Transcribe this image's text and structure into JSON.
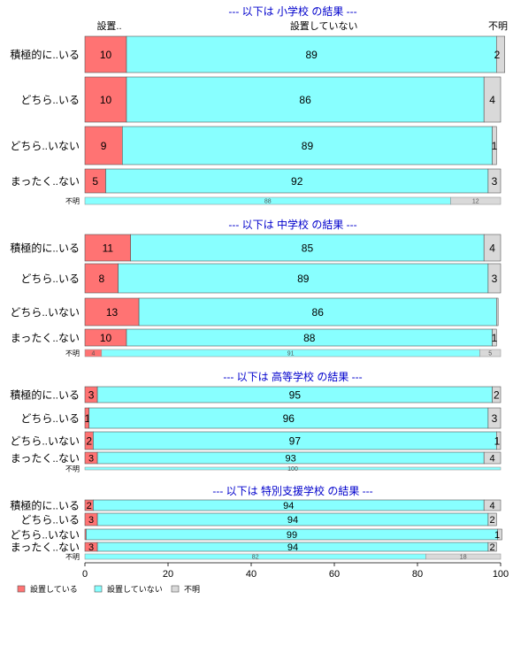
{
  "chart_data": {
    "type": "bar",
    "orientation": "horizontal",
    "stacked": true,
    "percent": true,
    "xlim": [
      0,
      100
    ],
    "x_ticks": [
      0,
      20,
      40,
      60,
      80,
      100
    ],
    "grid": false,
    "legend_placement": "bottom-left",
    "top_labels": [
      "設置..",
      "設置していない",
      "不明"
    ],
    "colors": {
      "installed": "#FF7373",
      "not_installed": "#88FFFF",
      "unknown": "#D9D9D9",
      "title": "#0000CC"
    },
    "legend": [
      "設置している",
      "設置していない",
      "不明"
    ],
    "panels": [
      {
        "title": "--- 以下は 小学校 の結果 ---",
        "rows": [
          {
            "label": "積極的に..いる",
            "values": [
              10,
              89,
              2
            ]
          },
          {
            "label": "どちら..いる",
            "values": [
              10,
              86,
              4
            ]
          },
          {
            "label": "どちら..いない",
            "values": [
              9,
              89,
              1
            ]
          },
          {
            "label": "まったく..ない",
            "values": [
              5,
              92,
              3
            ]
          }
        ],
        "total": {
          "label": "不明",
          "values": [
            0,
            88,
            12
          ]
        }
      },
      {
        "title": "--- 以下は 中学校 の結果 ---",
        "rows": [
          {
            "label": "積極的に..いる",
            "values": [
              11,
              85,
              4
            ]
          },
          {
            "label": "どちら..いる",
            "values": [
              8,
              89,
              3
            ]
          },
          {
            "label": "どちら..いない",
            "values": [
              13,
              86,
              0.4
            ]
          },
          {
            "label": "まったく..ない",
            "values": [
              10,
              88,
              1
            ]
          }
        ],
        "total": {
          "label": "不明",
          "values": [
            4,
            91,
            5
          ]
        }
      },
      {
        "title": "--- 以下は 高等学校 の結果 ---",
        "rows": [
          {
            "label": "積極的に..いる",
            "values": [
              3,
              95,
              2
            ]
          },
          {
            "label": "どちら..いる",
            "values": [
              1,
              96,
              3
            ]
          },
          {
            "label": "どちら..いない",
            "values": [
              2,
              97,
              1
            ]
          },
          {
            "label": "まったく..ない",
            "values": [
              3,
              93,
              4
            ]
          }
        ],
        "total": {
          "label": "不明",
          "values": [
            0,
            100,
            0
          ]
        }
      },
      {
        "title": "--- 以下は 特別支援学校 の結果 ---",
        "rows": [
          {
            "label": "積極的に..いる",
            "values": [
              2,
              94,
              4
            ]
          },
          {
            "label": "どちら..いる",
            "values": [
              3,
              94,
              2
            ]
          },
          {
            "label": "どちら..いない",
            "values": [
              0.3,
              99,
              1
            ]
          },
          {
            "label": "まったく..ない",
            "values": [
              3,
              94,
              2
            ]
          }
        ],
        "total": {
          "label": "不明",
          "values": [
            0,
            82,
            18
          ]
        }
      }
    ]
  }
}
